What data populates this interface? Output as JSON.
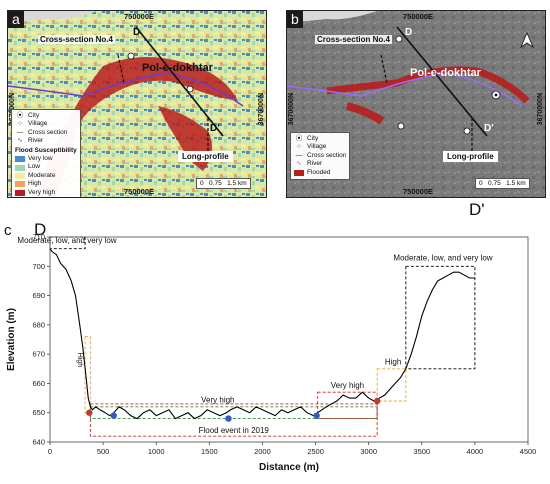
{
  "panel_a": {
    "letter": "a",
    "coord_top": "750000E",
    "coord_bottom": "750000E",
    "coord_left": "3670000N",
    "coord_right": "3670000N",
    "cross_section_label": "Cross-section No.4",
    "city_label": "Pol-e-dokhtar",
    "endpoint_start": "D",
    "endpoint_end": "D'",
    "long_profile_label": "Long-profile",
    "legend": {
      "items": [
        {
          "symbol": "city",
          "label": "City"
        },
        {
          "symbol": "village",
          "label": "Village"
        },
        {
          "symbol": "cross-section",
          "label": "Cross section"
        },
        {
          "symbol": "river",
          "label": "River"
        }
      ],
      "subtitle": "Flood Susceptibility",
      "classes": [
        {
          "label": "Very low",
          "color": "#3f8fd1"
        },
        {
          "label": "Low",
          "color": "#9fd8b0"
        },
        {
          "label": "Moderate",
          "color": "#f2ef9a"
        },
        {
          "label": "High",
          "color": "#f0a35e"
        },
        {
          "label": "Very high",
          "color": "#b81d1d"
        }
      ]
    },
    "scale": {
      "ticks": [
        "0",
        "0.75",
        "1.5 km"
      ]
    }
  },
  "panel_b": {
    "letter": "b",
    "coord_top": "750000E",
    "coord_bottom": "750000E",
    "coord_left": "3670000N",
    "coord_right": "3670000N",
    "cross_section_label": "Cross-section No.4",
    "city_label": "Pol-e-dokhtar",
    "endpoint_start": "D",
    "endpoint_end": "D'",
    "long_profile_label": "Long-profile",
    "legend": {
      "items": [
        {
          "symbol": "city",
          "label": "City"
        },
        {
          "symbol": "village",
          "label": "Village"
        },
        {
          "symbol": "cross-section",
          "label": "Cross section"
        },
        {
          "symbol": "river",
          "label": "River"
        },
        {
          "symbol": "flooded",
          "label": "Flooded"
        }
      ]
    },
    "scale": {
      "ticks": [
        "0",
        "0.75",
        "1.5 km"
      ]
    },
    "north_arrow": "north-arrow-icon"
  },
  "panel_c": {
    "letter": "c",
    "endpoint_left": "D",
    "endpoint_right": "D'"
  },
  "chart_data": {
    "type": "line",
    "title": "",
    "xlabel": "Distance (m)",
    "ylabel": "Elevation (m)",
    "xlim": [
      0,
      4500
    ],
    "ylim": [
      640,
      710
    ],
    "x_ticks": [
      0,
      500,
      1000,
      1500,
      2000,
      2500,
      3000,
      3500,
      4000,
      4500
    ],
    "y_ticks": [
      640,
      650,
      660,
      670,
      680,
      690,
      700,
      710
    ],
    "series": [
      {
        "color": "#000000",
        "x": [
          0,
          20,
          60,
          100,
          150,
          200,
          240,
          280,
          310,
          340,
          360,
          380,
          400,
          430,
          470,
          520,
          560,
          600,
          650,
          700,
          760,
          820,
          880,
          940,
          1000,
          1060,
          1120,
          1180,
          1240,
          1300,
          1360,
          1420,
          1480,
          1540,
          1600,
          1660,
          1700,
          1760,
          1820,
          1880,
          1940,
          2000,
          2060,
          2120,
          2180,
          2240,
          2300,
          2360,
          2420,
          2480,
          2520,
          2560,
          2600,
          2650,
          2700,
          2760,
          2820,
          2880,
          2940,
          3000,
          3050,
          3100,
          3150,
          3200,
          3250,
          3300,
          3350,
          3400,
          3450,
          3500,
          3550,
          3600,
          3650,
          3700,
          3750,
          3800,
          3850,
          3900,
          3950,
          4000
        ],
        "y": [
          706,
          705,
          704,
          701,
          699,
          695,
          690,
          680,
          672,
          662,
          655,
          652,
          651,
          652,
          651,
          650,
          649,
          650,
          652,
          651,
          649,
          648,
          650,
          651,
          649,
          650,
          651,
          648,
          649,
          650,
          648,
          649,
          651,
          650,
          649,
          650,
          651,
          652,
          651,
          650,
          652,
          651,
          650,
          649,
          651,
          650,
          651,
          652,
          650,
          649,
          650,
          651,
          652,
          653,
          654,
          656,
          655,
          655,
          657,
          655,
          654,
          655,
          656,
          658,
          660,
          662,
          665,
          670,
          676,
          683,
          688,
          692,
          695,
          696,
          697,
          698,
          698,
          697,
          696,
          696
        ]
      }
    ],
    "markers": [
      {
        "x": 370,
        "y": 650,
        "color": "#c0392b"
      },
      {
        "x": 600,
        "y": 649,
        "color": "#2e5ad6"
      },
      {
        "x": 1680,
        "y": 648,
        "color": "#2e5ad6"
      },
      {
        "x": 2510,
        "y": 649,
        "color": "#2e5ad6"
      },
      {
        "x": 3080,
        "y": 654,
        "color": "#c0392b"
      }
    ],
    "annotations": [
      {
        "text": "Moderate, low, and very low",
        "color": "#000000"
      },
      {
        "text": "High",
        "color": "#f0a040"
      },
      {
        "text": "Very high",
        "color": "#2e8b3a"
      },
      {
        "text": "Flood event in 2019",
        "color": "#d62020"
      },
      {
        "text": "Very high",
        "color": "#d62020"
      },
      {
        "text": "High",
        "color": "#f0a040"
      },
      {
        "text": "Moderate, low, and very low",
        "color": "#000000"
      }
    ]
  }
}
